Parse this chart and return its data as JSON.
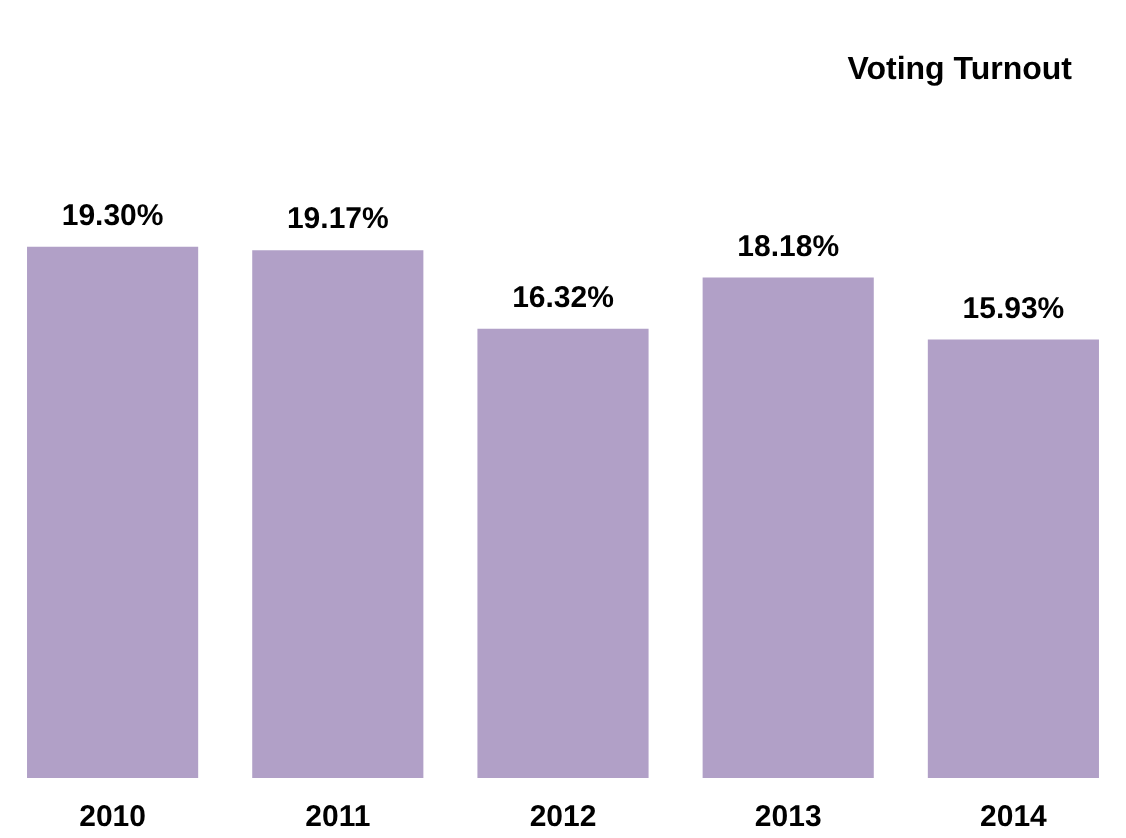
{
  "chart_data": {
    "type": "bar",
    "title": "Voting Turnout",
    "categories": [
      "2010",
      "2011",
      "2012",
      "2013",
      "2014"
    ],
    "values": [
      19.3,
      19.17,
      16.32,
      18.18,
      15.93
    ],
    "value_labels": [
      "19.30%",
      "19.17%",
      "16.32%",
      "18.18%",
      "15.93%"
    ],
    "color": "#b1a0c7"
  }
}
